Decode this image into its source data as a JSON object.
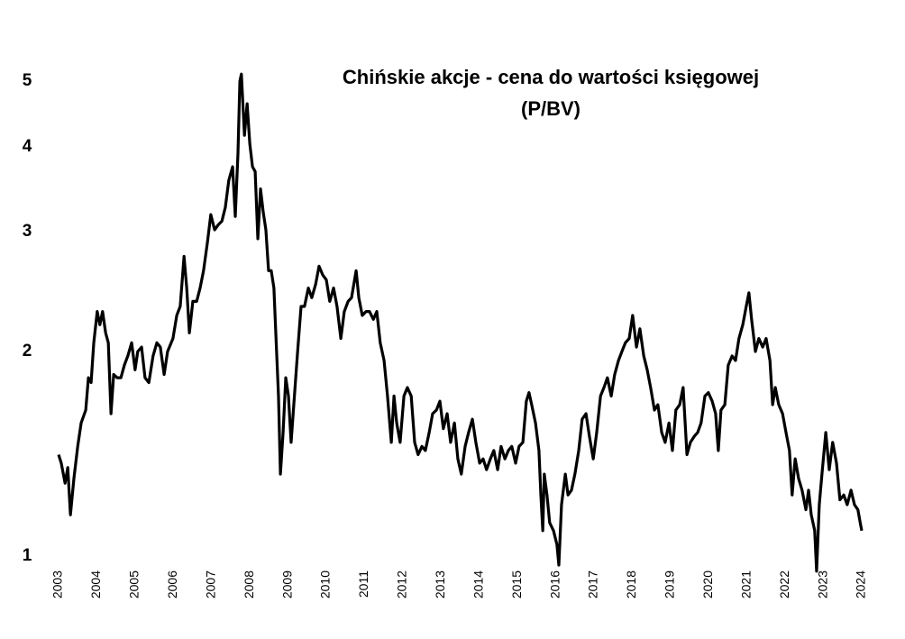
{
  "chart_data": {
    "type": "line",
    "title": [
      "Chińskie akcje - cena do wartości księgowej",
      "(P/BV)"
    ],
    "yscale": "log",
    "grid": false,
    "xlim": [
      2003,
      2024
    ],
    "xticks": [
      2003,
      2004,
      2005,
      2006,
      2007,
      2008,
      2009,
      2010,
      2011,
      2012,
      2013,
      2014,
      2015,
      2016,
      2017,
      2018,
      2019,
      2020,
      2021,
      2022,
      2023,
      2024
    ],
    "ylim": [
      0.9,
      5.5
    ],
    "yticks": [
      1,
      2,
      3,
      4,
      5
    ],
    "series": [
      {
        "name": "P/BV",
        "color": "#000000",
        "x": [
          2003.0,
          2003.07,
          2003.17,
          2003.24,
          2003.31,
          2003.4,
          2003.5,
          2003.59,
          2003.71,
          2003.78,
          2003.85,
          2003.92,
          2004.01,
          2004.08,
          2004.15,
          2004.23,
          2004.3,
          2004.37,
          2004.44,
          2004.53,
          2004.63,
          2004.72,
          2004.81,
          2004.91,
          2005.0,
          2005.07,
          2005.17,
          2005.26,
          2005.36,
          2005.47,
          2005.57,
          2005.66,
          2005.76,
          2005.85,
          2005.99,
          2006.09,
          2006.18,
          2006.28,
          2006.35,
          2006.42,
          2006.51,
          2006.61,
          2006.7,
          2006.79,
          2006.89,
          2006.98,
          2007.08,
          2007.17,
          2007.27,
          2007.36,
          2007.45,
          2007.55,
          2007.62,
          2007.69,
          2007.74,
          2007.78,
          2007.86,
          2007.93,
          2008.0,
          2008.07,
          2008.14,
          2008.21,
          2008.28,
          2008.35,
          2008.42,
          2008.49,
          2008.56,
          2008.63,
          2008.7,
          2008.75,
          2008.8,
          2008.87,
          2008.94,
          2009.01,
          2009.08,
          2009.15,
          2009.25,
          2009.34,
          2009.43,
          2009.53,
          2009.62,
          2009.72,
          2009.81,
          2009.91,
          2010.0,
          2010.09,
          2010.19,
          2010.28,
          2010.38,
          2010.47,
          2010.57,
          2010.66,
          2010.78,
          2010.85,
          2010.94,
          2011.04,
          2011.13,
          2011.23,
          2011.32,
          2011.41,
          2011.51,
          2011.6,
          2011.7,
          2011.77,
          2011.84,
          2011.93,
          2012.03,
          2012.12,
          2012.22,
          2012.31,
          2012.4,
          2012.5,
          2012.59,
          2012.69,
          2012.78,
          2012.88,
          2012.97,
          2013.06,
          2013.16,
          2013.25,
          2013.35,
          2013.44,
          2013.53,
          2013.63,
          2013.72,
          2013.82,
          2013.91,
          2014.01,
          2014.1,
          2014.19,
          2014.29,
          2014.38,
          2014.48,
          2014.57,
          2014.67,
          2014.76,
          2014.85,
          2014.95,
          2015.04,
          2015.14,
          2015.23,
          2015.3,
          2015.37,
          2015.47,
          2015.56,
          2015.61,
          2015.66,
          2015.7,
          2015.77,
          2015.84,
          2015.94,
          2016.03,
          2016.08,
          2016.15,
          2016.25,
          2016.32,
          2016.41,
          2016.5,
          2016.6,
          2016.69,
          2016.79,
          2016.88,
          2016.98,
          2017.07,
          2017.17,
          2017.26,
          2017.35,
          2017.45,
          2017.54,
          2017.64,
          2017.73,
          2017.82,
          2017.92,
          2018.01,
          2018.11,
          2018.2,
          2018.3,
          2018.39,
          2018.48,
          2018.58,
          2018.67,
          2018.77,
          2018.86,
          2018.96,
          2019.05,
          2019.14,
          2019.24,
          2019.33,
          2019.43,
          2019.52,
          2019.62,
          2019.71,
          2019.8,
          2019.9,
          2019.99,
          2020.09,
          2020.18,
          2020.25,
          2020.32,
          2020.42,
          2020.51,
          2020.61,
          2020.7,
          2020.79,
          2020.89,
          2020.98,
          2021.05,
          2021.12,
          2021.22,
          2021.31,
          2021.41,
          2021.5,
          2021.6,
          2021.67,
          2021.74,
          2021.83,
          2021.93,
          2022.02,
          2022.11,
          2022.18,
          2022.26,
          2022.35,
          2022.44,
          2022.54,
          2022.61,
          2022.68,
          2022.77,
          2022.82,
          2022.89,
          2022.96,
          2023.06,
          2023.15,
          2023.24,
          2023.34,
          2023.43,
          2023.53,
          2023.62,
          2023.72,
          2023.81,
          2023.9,
          2023.96,
          2024.0
        ],
        "values": [
          1.41,
          1.37,
          1.28,
          1.35,
          1.15,
          1.3,
          1.45,
          1.57,
          1.64,
          1.83,
          1.8,
          2.06,
          2.29,
          2.19,
          2.29,
          2.13,
          2.06,
          1.62,
          1.85,
          1.83,
          1.83,
          1.91,
          1.97,
          2.06,
          1.88,
          2.0,
          2.03,
          1.83,
          1.8,
          1.97,
          2.06,
          2.03,
          1.85,
          2.0,
          2.09,
          2.26,
          2.33,
          2.76,
          2.48,
          2.13,
          2.37,
          2.37,
          2.48,
          2.63,
          2.89,
          3.18,
          3.02,
          3.07,
          3.11,
          3.26,
          3.57,
          3.74,
          3.16,
          3.91,
          5.0,
          5.12,
          4.16,
          4.63,
          4.04,
          3.74,
          3.68,
          2.93,
          3.47,
          3.21,
          3.02,
          2.63,
          2.63,
          2.48,
          2.0,
          1.72,
          1.32,
          1.52,
          1.83,
          1.72,
          1.47,
          1.67,
          2.0,
          2.33,
          2.33,
          2.48,
          2.4,
          2.51,
          2.67,
          2.59,
          2.55,
          2.37,
          2.48,
          2.33,
          2.09,
          2.29,
          2.37,
          2.4,
          2.63,
          2.4,
          2.26,
          2.29,
          2.29,
          2.23,
          2.29,
          2.06,
          1.94,
          1.72,
          1.47,
          1.72,
          1.57,
          1.47,
          1.72,
          1.77,
          1.72,
          1.47,
          1.41,
          1.45,
          1.43,
          1.52,
          1.62,
          1.64,
          1.69,
          1.54,
          1.62,
          1.47,
          1.57,
          1.39,
          1.32,
          1.45,
          1.52,
          1.59,
          1.47,
          1.37,
          1.39,
          1.34,
          1.39,
          1.43,
          1.34,
          1.45,
          1.39,
          1.43,
          1.45,
          1.37,
          1.45,
          1.47,
          1.69,
          1.74,
          1.67,
          1.57,
          1.43,
          1.23,
          1.09,
          1.32,
          1.23,
          1.12,
          1.09,
          1.04,
          0.97,
          1.19,
          1.32,
          1.23,
          1.25,
          1.32,
          1.43,
          1.59,
          1.62,
          1.5,
          1.39,
          1.52,
          1.72,
          1.77,
          1.83,
          1.72,
          1.85,
          1.94,
          2.0,
          2.06,
          2.09,
          2.26,
          2.03,
          2.16,
          1.97,
          1.88,
          1.77,
          1.64,
          1.67,
          1.52,
          1.47,
          1.57,
          1.43,
          1.64,
          1.67,
          1.77,
          1.41,
          1.47,
          1.5,
          1.52,
          1.57,
          1.72,
          1.74,
          1.69,
          1.62,
          1.43,
          1.64,
          1.67,
          1.91,
          1.97,
          1.94,
          2.09,
          2.19,
          2.33,
          2.44,
          2.23,
          2.0,
          2.09,
          2.03,
          2.09,
          1.94,
          1.67,
          1.77,
          1.67,
          1.62,
          1.52,
          1.43,
          1.23,
          1.39,
          1.3,
          1.25,
          1.17,
          1.25,
          1.15,
          1.09,
          0.95,
          1.19,
          1.32,
          1.52,
          1.34,
          1.47,
          1.37,
          1.21,
          1.23,
          1.19,
          1.25,
          1.19,
          1.17,
          1.12,
          1.09
        ]
      }
    ]
  }
}
